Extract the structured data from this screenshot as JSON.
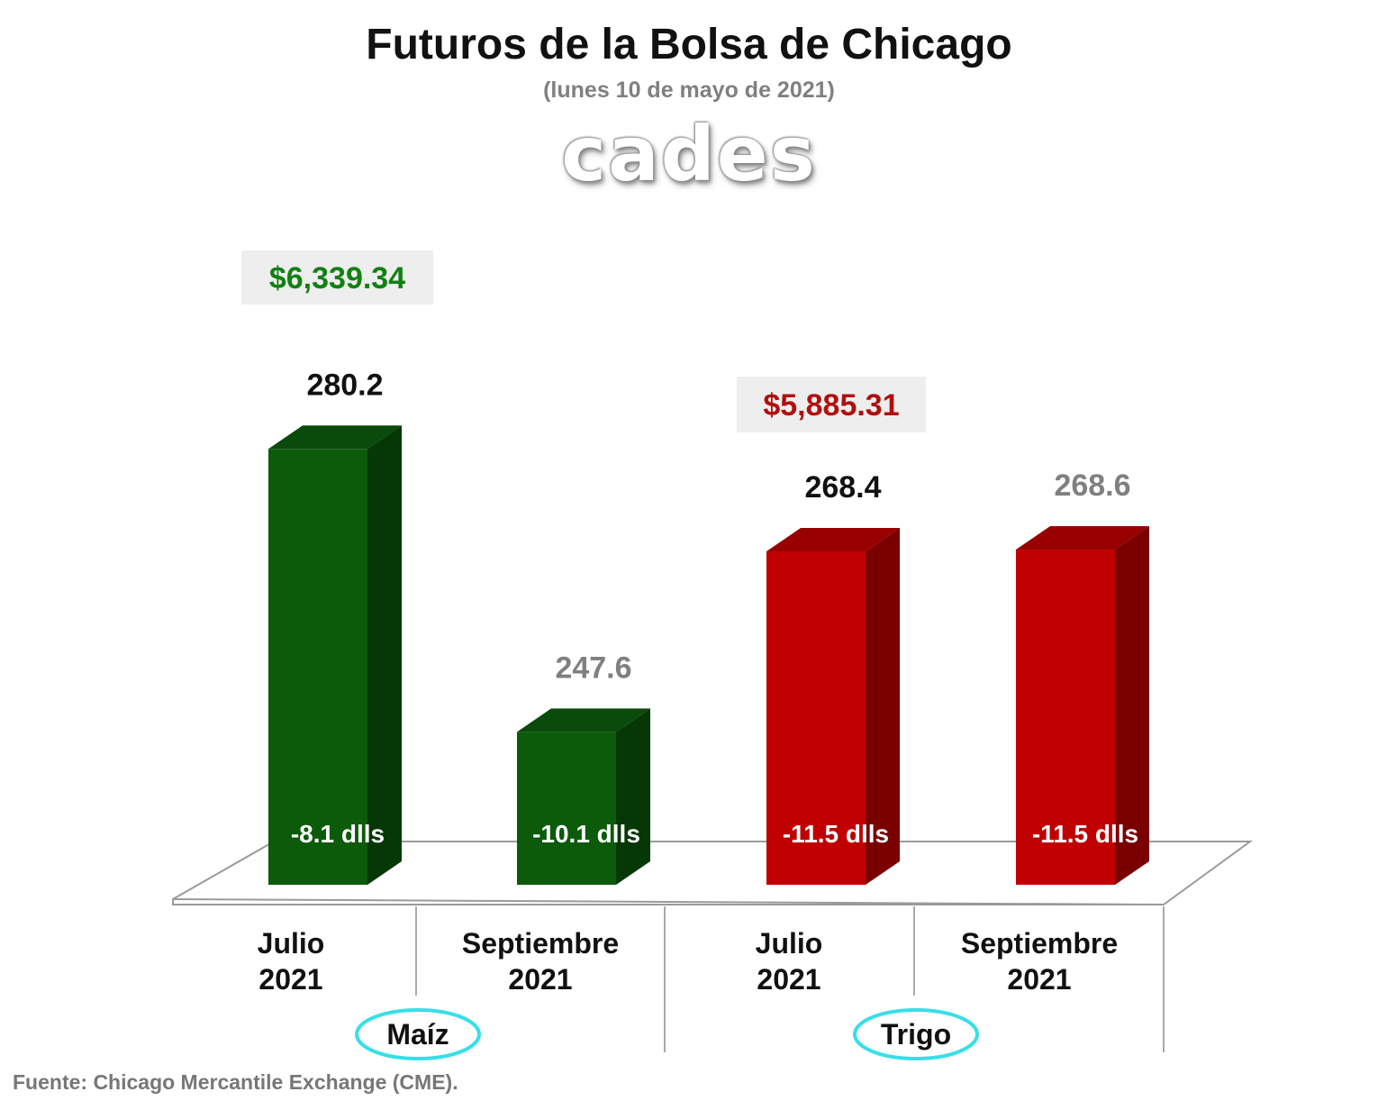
{
  "title": "Futuros de la Bolsa de Chicago",
  "subtitle": "(lunes 10 de mayo de 2021)",
  "logo_text": "cades",
  "source": "Fuente: Chicago Mercantile Exchange (CME).",
  "colors": {
    "green_front": "#0b5b0b",
    "green_side": "#063806",
    "green_top": "#0a4a0a",
    "red_front": "#c00000",
    "red_side": "#7a0000",
    "red_top": "#980000",
    "total_green": "#138013",
    "total_red": "#b01010",
    "gray_value": "#808080",
    "dark_value": "#111111",
    "ellipse": "#37dfe8"
  },
  "chart_data": {
    "type": "bar",
    "title": "Futuros de la Bolsa de Chicago",
    "subtitle": "(lunes 10 de mayo de 2021)",
    "groups": [
      {
        "name": "Maíz",
        "total": "$6,339.34",
        "total_color": "green",
        "color": "green"
      },
      {
        "name": "Trigo",
        "total": "$5,885.31",
        "total_color": "red",
        "color": "red"
      }
    ],
    "categories": [
      {
        "line1": "Julio",
        "line2": "2021"
      },
      {
        "line1": "Septiembre",
        "line2": "2021"
      },
      {
        "line1": "Julio",
        "line2": "2021"
      },
      {
        "line1": "Septiembre",
        "line2": "2021"
      }
    ],
    "values": [
      280.2,
      247.6,
      268.4,
      268.6
    ],
    "value_labels": [
      "280.2",
      "247.6",
      "268.4",
      "268.6"
    ],
    "value_label_colors": [
      "dark",
      "gray",
      "dark",
      "gray"
    ],
    "changes": [
      "-8.1 dlls",
      "-10.1 dlls",
      "-11.5 dlls",
      "-11.5 dlls"
    ],
    "bar_group": [
      0,
      0,
      1,
      1
    ],
    "ylim": [
      230,
      285
    ]
  }
}
